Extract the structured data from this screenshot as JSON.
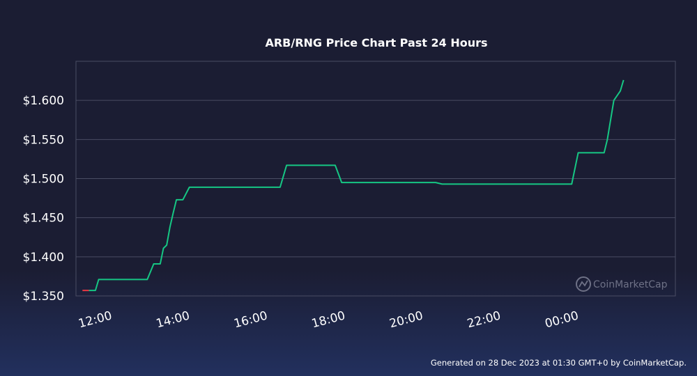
{
  "footer": "Generated on 28 Dec 2023 at 01:30 GMT+0 by CoinMarketCap.",
  "watermark": "CoinMarketCap",
  "colors": {
    "line": "#16c784",
    "line_start": "#ea3943",
    "grid": "#4a4d63",
    "background": "#1b1d33"
  },
  "chart_data": {
    "type": "line",
    "title": "ARB/RNG Price Chart Past 24 Hours",
    "xlabel": "",
    "ylabel": "",
    "x_ticks": [
      "12:00",
      "14:00",
      "16:00",
      "18:00",
      "20:00",
      "22:00",
      "00:00"
    ],
    "y_ticks": [
      "$1.350",
      "$1.400",
      "$1.450",
      "$1.500",
      "$1.550",
      "$1.600"
    ],
    "ylim": [
      1.35,
      1.65
    ],
    "xlim": [
      "2023-12-27 11:25",
      "2023-12-28 02:50"
    ],
    "grid": true,
    "series": [
      {
        "x": [
          "2023-12-27 11:35",
          "2023-12-27 11:45",
          "2023-12-27 11:55",
          "2023-12-27 12:00",
          "2023-12-27 13:15",
          "2023-12-27 13:25",
          "2023-12-27 13:35",
          "2023-12-27 13:40",
          "2023-12-27 13:45",
          "2023-12-27 13:50",
          "2023-12-27 13:55",
          "2023-12-27 14:00",
          "2023-12-27 14:10",
          "2023-12-27 14:20",
          "2023-12-27 16:40",
          "2023-12-27 16:50",
          "2023-12-27 18:05",
          "2023-12-27 18:15",
          "2023-12-27 20:40",
          "2023-12-27 20:50",
          "2023-12-28 00:10",
          "2023-12-28 00:20",
          "2023-12-28 01:00",
          "2023-12-28 01:05",
          "2023-12-28 01:15",
          "2023-12-28 01:25",
          "2023-12-28 01:30"
        ],
        "y": [
          1.357,
          1.357,
          1.357,
          1.371,
          1.371,
          1.391,
          1.391,
          1.411,
          1.415,
          1.438,
          1.456,
          1.473,
          1.473,
          1.489,
          1.489,
          1.517,
          1.517,
          1.495,
          1.495,
          1.493,
          1.493,
          1.533,
          1.533,
          1.55,
          1.6,
          1.612,
          1.626
        ]
      }
    ]
  }
}
